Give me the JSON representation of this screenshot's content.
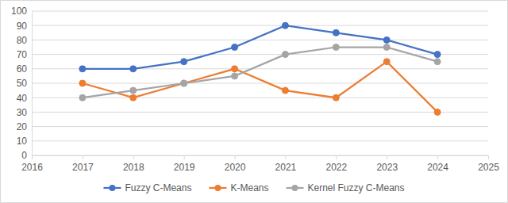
{
  "chart_data": {
    "type": "line",
    "x": [
      2017,
      2018,
      2019,
      2020,
      2021,
      2022,
      2023,
      2024
    ],
    "series": [
      {
        "name": "Fuzzy C-Means",
        "color": "#4472c4",
        "values": [
          60,
          60,
          65,
          75,
          90,
          85,
          80,
          70
        ]
      },
      {
        "name": "K-Means",
        "color": "#ed7d31",
        "values": [
          50,
          40,
          50,
          60,
          45,
          40,
          65,
          30
        ]
      },
      {
        "name": "Kernel Fuzzy C-Means",
        "color": "#a5a5a5",
        "values": [
          40,
          45,
          50,
          55,
          70,
          75,
          75,
          65
        ]
      }
    ],
    "xlim": [
      2016,
      2025
    ],
    "xticks": [
      2016,
      2017,
      2018,
      2019,
      2020,
      2021,
      2022,
      2023,
      2024,
      2025
    ],
    "ylim": [
      0,
      100
    ],
    "yticks": [
      0,
      10,
      20,
      30,
      40,
      50,
      60,
      70,
      80,
      90,
      100
    ],
    "grid": true,
    "legend": "bottom",
    "marker": "circle",
    "line_style": "solid"
  }
}
